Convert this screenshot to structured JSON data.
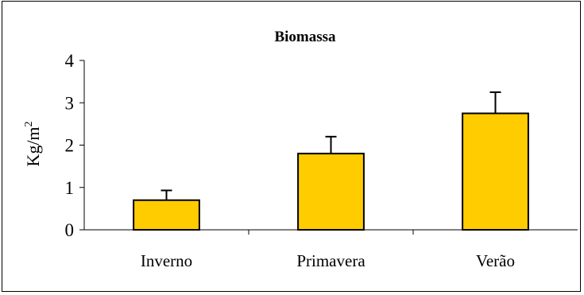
{
  "colors": {
    "bar_fill": "#ffcc00",
    "bar_stroke": "#000000",
    "axis": "#000000",
    "background": "#ffffff"
  },
  "chart_data": {
    "type": "bar",
    "title": "Biomassa",
    "xlabel": "",
    "ylabel": "Kg/m",
    "ylabel_superscript": "2",
    "categories": [
      "Inverno",
      "Primavera",
      "Verão"
    ],
    "values": [
      0.7,
      1.8,
      2.75
    ],
    "error_plus": [
      0.23,
      0.4,
      0.5
    ],
    "ylim": [
      0,
      4
    ],
    "yticks": [
      "0",
      "1",
      "2",
      "3",
      "4"
    ],
    "grid": false,
    "legend": "none"
  }
}
